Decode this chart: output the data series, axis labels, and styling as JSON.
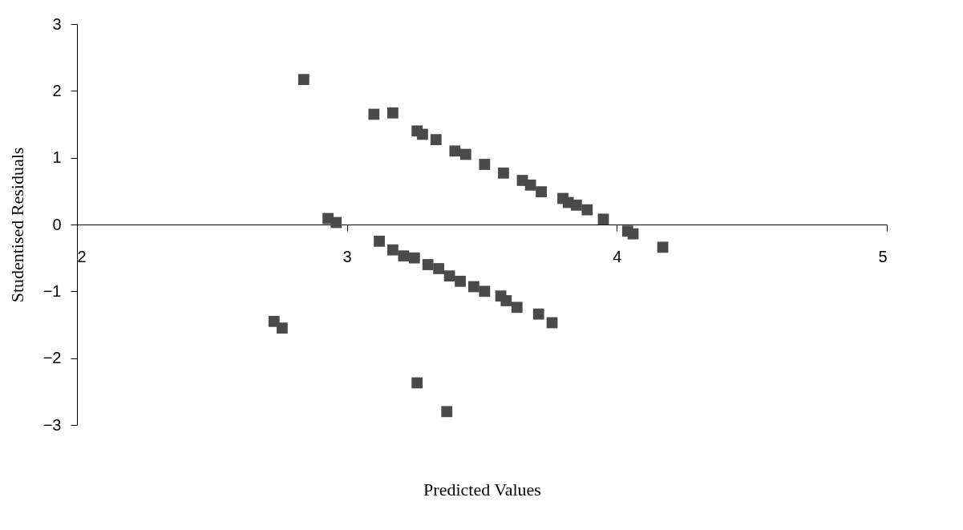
{
  "chart_data": {
    "type": "scatter",
    "xlabel": "Predicted Values",
    "ylabel": "Studentised Residuals",
    "xlim": [
      2,
      5
    ],
    "xticks": [
      2,
      3,
      4,
      5
    ],
    "ylim": [
      -3,
      3
    ],
    "yticks": [
      -3,
      -2,
      -1,
      0,
      1,
      2,
      3
    ],
    "grid": false,
    "marker": "square",
    "series": [
      {
        "color": "#4a4a4a",
        "x": [
          2.84,
          3.1,
          3.17,
          3.26,
          3.28,
          3.33,
          3.4,
          3.44,
          3.51,
          3.58,
          3.65,
          3.68,
          3.72,
          3.8,
          3.82,
          3.85,
          3.89,
          3.95,
          4.04,
          4.06,
          4.17,
          2.93,
          2.96,
          3.12,
          3.17,
          3.21,
          3.25,
          3.3,
          3.34,
          3.38,
          3.42,
          3.47,
          3.51,
          3.57,
          3.59,
          3.63,
          3.71,
          3.76,
          2.73,
          2.76,
          3.26,
          3.37
        ],
        "values": [
          2.17,
          1.65,
          1.67,
          1.4,
          1.35,
          1.27,
          1.1,
          1.05,
          0.9,
          0.77,
          0.66,
          0.59,
          0.49,
          0.39,
          0.33,
          0.29,
          0.22,
          0.08,
          -0.1,
          -0.14,
          -0.34,
          0.09,
          0.03,
          -0.25,
          -0.38,
          -0.47,
          -0.5,
          -0.6,
          -0.66,
          -0.77,
          -0.85,
          -0.93,
          -1.0,
          -1.07,
          -1.14,
          -1.24,
          -1.34,
          -1.47,
          -1.45,
          -1.55,
          -2.37,
          -2.8
        ]
      }
    ]
  }
}
